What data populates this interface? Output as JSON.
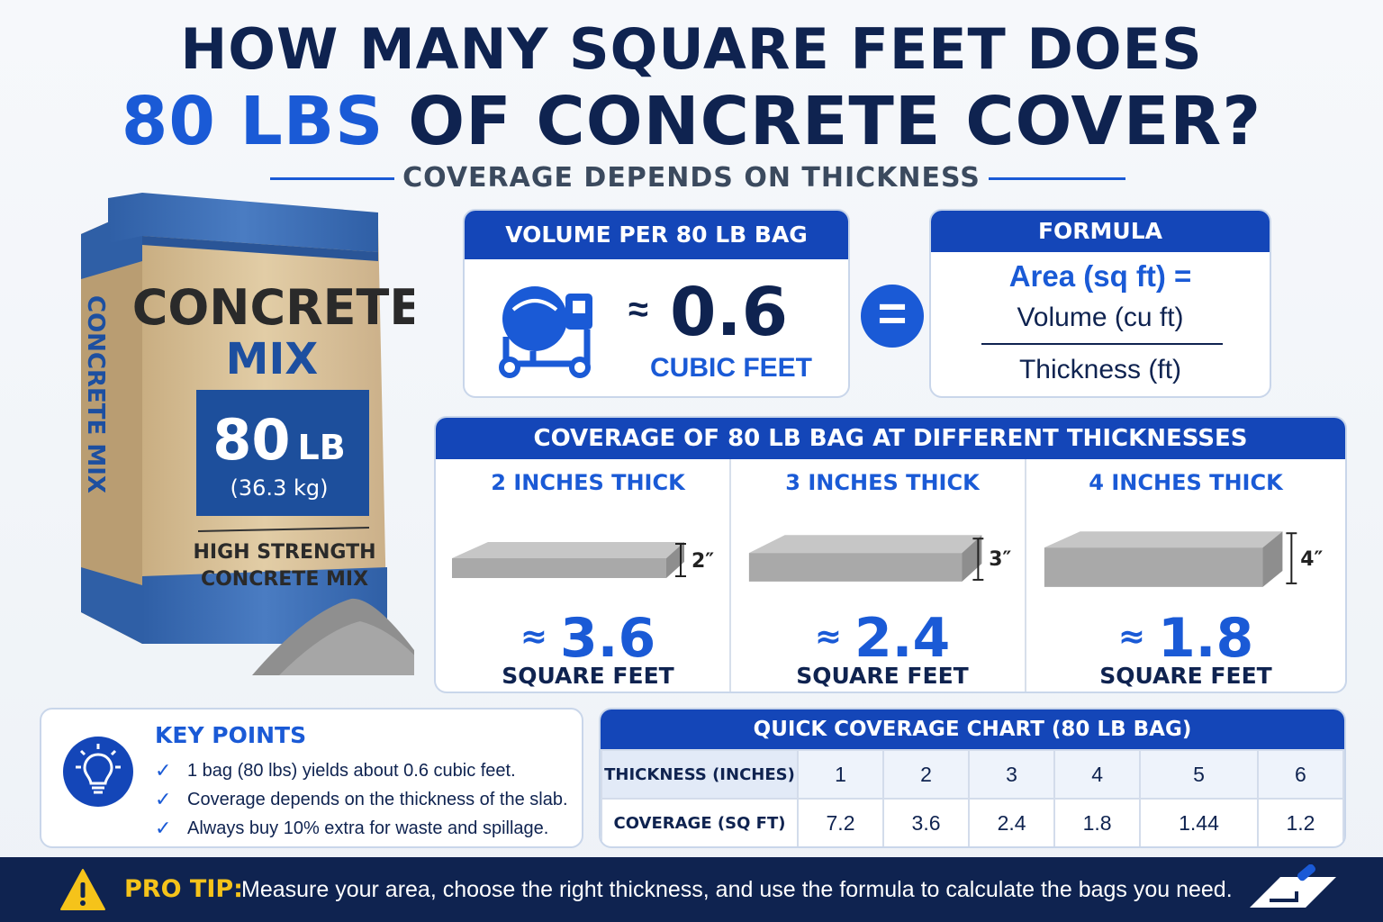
{
  "header": {
    "line1": "HOW MANY SQUARE FEET DOES",
    "line2_accent": "80 LBS",
    "line2_rest": " OF CONCRETE COVER?",
    "subtitle": "COVERAGE DEPENDS ON THICKNESS"
  },
  "bag": {
    "side_text": "CONCRETE MIX",
    "brand_line1": "CONCRETE",
    "brand_line2": "MIX",
    "weight_value": "80",
    "weight_unit": "LB",
    "weight_metric": "(36.3 kg)",
    "desc_line1": "HIGH STRENGTH",
    "desc_line2": "CONCRETE MIX"
  },
  "volume": {
    "title": "VOLUME PER 80 LB BAG",
    "icon": "cement-mixer-icon",
    "approx": "≈",
    "value": "0.6",
    "unit": "CUBIC FEET"
  },
  "equals_symbol": "=",
  "formula": {
    "title": "FORMULA",
    "lhs": "Area (sq ft) =",
    "numerator": "Volume (cu ft)",
    "denominator": "Thickness (ft)"
  },
  "coverage": {
    "title": "COVERAGE OF 80 LB BAG AT DIFFERENT THICKNESSES",
    "items": [
      {
        "label": "2 INCHES THICK",
        "dim": "2″",
        "approx": "≈",
        "value": "3.6",
        "unit": "SQUARE FEET"
      },
      {
        "label": "3 INCHES THICK",
        "dim": "3″",
        "approx": "≈",
        "value": "2.4",
        "unit": "SQUARE FEET"
      },
      {
        "label": "4 INCHES THICK",
        "dim": "4″",
        "approx": "≈",
        "value": "1.8",
        "unit": "SQUARE FEET"
      }
    ]
  },
  "key_points": {
    "title": "KEY POINTS",
    "icon": "lightbulb-icon",
    "items": [
      "1 bag (80 lbs) yields about 0.6 cubic feet.",
      "Coverage depends on the thickness of the slab.",
      "Always buy 10% extra for waste and spillage."
    ]
  },
  "quick_chart": {
    "title": "QUICK COVERAGE CHART (80 LB BAG)",
    "row1_header": "THICKNESS (INCHES)",
    "row2_header": "COVERAGE (SQ FT)",
    "thickness": [
      "1",
      "2",
      "3",
      "4",
      "5",
      "6"
    ],
    "coverage": [
      "7.2",
      "3.6",
      "2.4",
      "1.8",
      "1.44",
      "1.2"
    ]
  },
  "pro_tip": {
    "label": "PRO TIP:",
    "text": "Measure your area, choose the right thickness, and use the formula to calculate the bags you need.",
    "icon": "warning-icon",
    "trowel_icon": "trowel-icon"
  },
  "colors": {
    "navy": "#0f2350",
    "blue": "#1a5ad6",
    "header_blue": "#1446b8",
    "tip_yellow": "#f5c31a"
  }
}
